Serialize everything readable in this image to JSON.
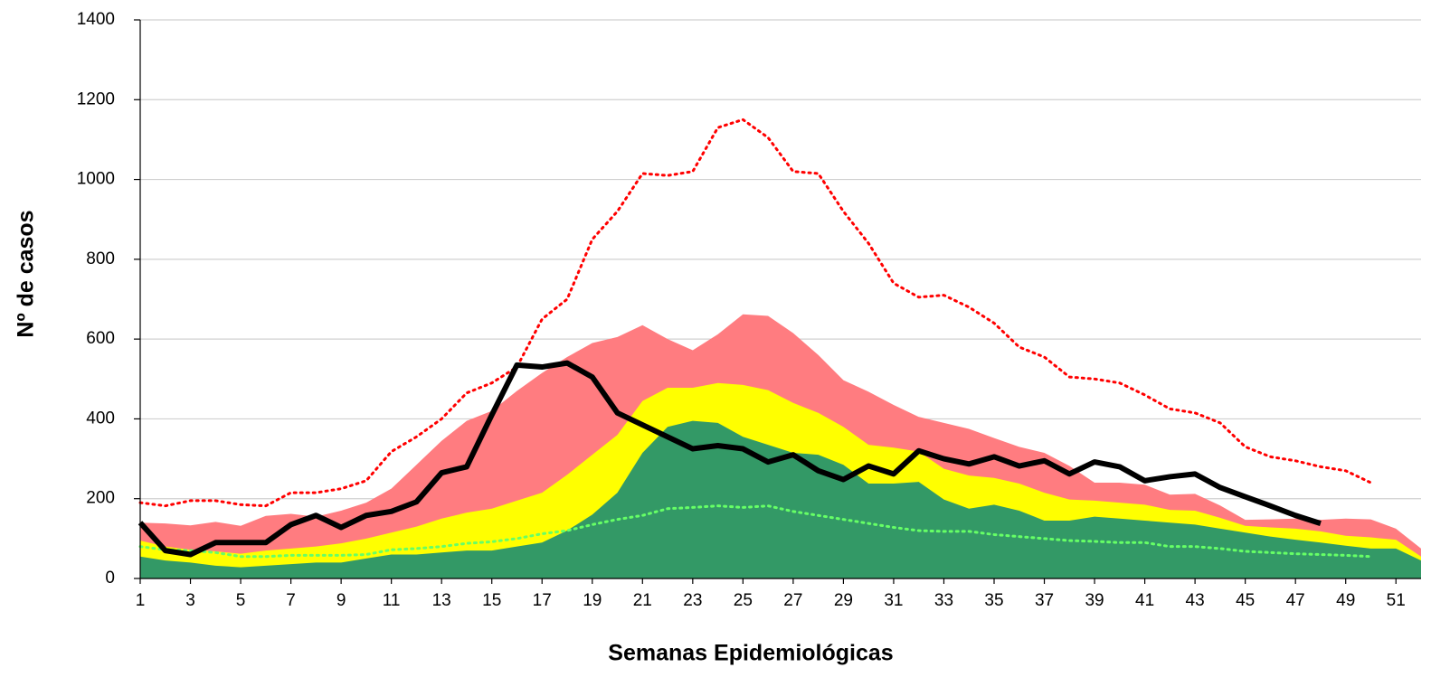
{
  "chart_data": {
    "type": "area",
    "x_label": "Semanas Epidemiológicas",
    "y_label": "Nº de casos",
    "x": [
      1,
      2,
      3,
      4,
      5,
      6,
      7,
      8,
      9,
      10,
      11,
      12,
      13,
      14,
      15,
      16,
      17,
      18,
      19,
      20,
      21,
      22,
      23,
      24,
      25,
      26,
      27,
      28,
      29,
      30,
      31,
      32,
      33,
      34,
      35,
      36,
      37,
      38,
      39,
      40,
      41,
      42,
      43,
      44,
      45,
      46,
      47,
      48,
      49,
      50,
      51,
      52
    ],
    "xlim": [
      1,
      52
    ],
    "xticks": [
      1,
      3,
      5,
      7,
      9,
      11,
      13,
      15,
      17,
      19,
      21,
      23,
      25,
      27,
      29,
      31,
      33,
      35,
      37,
      39,
      41,
      43,
      45,
      47,
      49,
      51
    ],
    "ylim": [
      0,
      1400
    ],
    "yticks": [
      0,
      200,
      400,
      600,
      800,
      1000,
      1200,
      1400
    ],
    "grid": true,
    "series": [
      {
        "kind": "area",
        "color": "#ff7c80",
        "values": [
          140,
          138,
          133,
          142,
          132,
          157,
          162,
          155,
          170,
          190,
          225,
          285,
          345,
          395,
          420,
          470,
          515,
          555,
          590,
          605,
          635,
          600,
          572,
          612,
          662,
          658,
          615,
          560,
          497,
          468,
          435,
          405,
          390,
          375,
          352,
          330,
          315,
          282,
          240,
          240,
          235,
          210,
          212,
          183,
          147,
          148,
          150,
          147,
          150,
          148,
          125,
          75
        ]
      },
      {
        "kind": "area",
        "color": "#ffff00",
        "values": [
          95,
          80,
          72,
          68,
          62,
          70,
          75,
          80,
          88,
          100,
          115,
          130,
          150,
          165,
          175,
          195,
          215,
          260,
          310,
          360,
          445,
          478,
          478,
          490,
          485,
          472,
          440,
          415,
          380,
          335,
          328,
          318,
          275,
          258,
          252,
          238,
          215,
          198,
          195,
          190,
          185,
          172,
          170,
          152,
          132,
          128,
          125,
          118,
          107,
          103,
          97,
          55
        ]
      },
      {
        "kind": "area",
        "color": "#339966",
        "values": [
          55,
          45,
          40,
          32,
          28,
          32,
          36,
          40,
          40,
          50,
          60,
          60,
          65,
          70,
          70,
          80,
          90,
          120,
          160,
          215,
          315,
          380,
          395,
          390,
          355,
          335,
          315,
          310,
          285,
          238,
          238,
          242,
          198,
          175,
          185,
          170,
          145,
          145,
          155,
          150,
          145,
          140,
          135,
          125,
          115,
          105,
          97,
          90,
          82,
          75,
          75,
          45
        ]
      },
      {
        "kind": "line",
        "style": "dotted",
        "color": "#ff0000",
        "values": [
          190,
          182,
          195,
          195,
          185,
          182,
          215,
          215,
          225,
          245,
          318,
          355,
          400,
          465,
          490,
          530,
          650,
          700,
          850,
          920,
          1015,
          1010,
          1020,
          1130,
          1150,
          1105,
          1020,
          1015,
          920,
          840,
          740,
          705,
          710,
          680,
          640,
          580,
          555,
          505,
          500,
          490,
          460,
          425,
          415,
          390,
          330,
          305,
          295,
          280,
          270,
          240,
          null,
          null
        ]
      },
      {
        "kind": "line",
        "style": "dotted",
        "color": "#66ff66",
        "values": [
          80,
          72,
          70,
          65,
          55,
          55,
          58,
          58,
          58,
          60,
          72,
          75,
          80,
          88,
          92,
          100,
          112,
          120,
          135,
          148,
          158,
          175,
          178,
          182,
          178,
          182,
          168,
          158,
          148,
          138,
          128,
          120,
          118,
          118,
          110,
          105,
          100,
          95,
          93,
          90,
          90,
          80,
          80,
          75,
          68,
          65,
          62,
          60,
          58,
          55,
          null,
          null
        ]
      },
      {
        "kind": "line",
        "style": "solid",
        "color": "#000000",
        "values": [
          140,
          70,
          60,
          90,
          90,
          90,
          135,
          158,
          128,
          158,
          168,
          192,
          265,
          280,
          410,
          535,
          530,
          540,
          505,
          415,
          385,
          355,
          325,
          333,
          325,
          292,
          310,
          270,
          248,
          282,
          262,
          320,
          300,
          287,
          305,
          282,
          295,
          262,
          292,
          280,
          245,
          255,
          262,
          228,
          205,
          182,
          158,
          138,
          null,
          null,
          null,
          null
        ]
      }
    ]
  }
}
